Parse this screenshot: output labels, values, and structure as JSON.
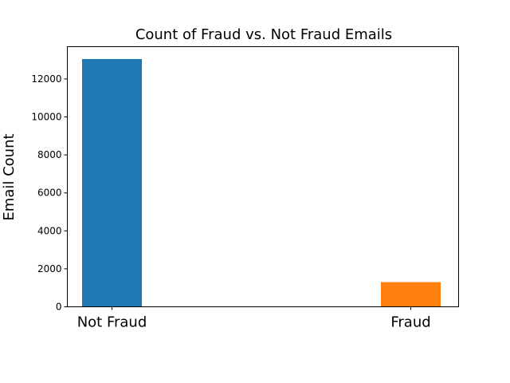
{
  "chart_data": {
    "type": "bar",
    "title": "Count of Fraud vs. Not Fraud Emails",
    "xlabel": "",
    "ylabel": "Email Count",
    "categories": [
      "Not Fraud",
      "Fraud"
    ],
    "values": [
      13050,
      1300
    ],
    "colors": [
      "#1f77b4",
      "#ff7f0e"
    ],
    "ylim": [
      0,
      13700
    ],
    "yticks": [
      0,
      2000,
      4000,
      6000,
      8000,
      10000,
      12000
    ],
    "ytick_labels": [
      "0",
      "2000",
      "4000",
      "6000",
      "8000",
      "10000",
      "12000"
    ],
    "grid": false,
    "legend": "none"
  }
}
